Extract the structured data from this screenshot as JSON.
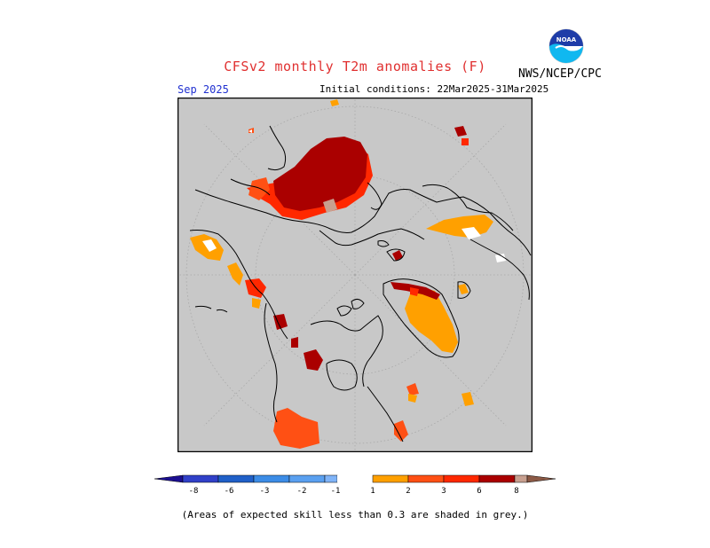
{
  "header": {
    "title": "CFSv2 monthly T2m anomalies (F)",
    "organization": "NWS/NCEP/CPC",
    "target_month": "Sep 2025",
    "initial_conditions": "Initial conditions: 22Mar2025-31Mar2025"
  },
  "logo": {
    "text": "NOAA",
    "icon": "noaa-logo-icon"
  },
  "map": {
    "projection": "north polar stereographic",
    "background_color": "#c8c8c8",
    "gridline_color": "#a0a0a0"
  },
  "colorbar": {
    "tick_labels": [
      "-8",
      "-6",
      "-3",
      "-2",
      "-1",
      "1",
      "2",
      "3",
      "6",
      "8"
    ],
    "colors": [
      "#1c0f91",
      "#3040c8",
      "#2060c8",
      "#3c8ce6",
      "#5aa0f0",
      "#80b4f8",
      "#ffffff",
      "#ffa000",
      "#ff5014",
      "#ff2800",
      "#aa0000",
      "#c8a090",
      "#8c5a46"
    ]
  },
  "footnote": "(Areas of expected skill less than 0.3 are shaded in grey.)"
}
